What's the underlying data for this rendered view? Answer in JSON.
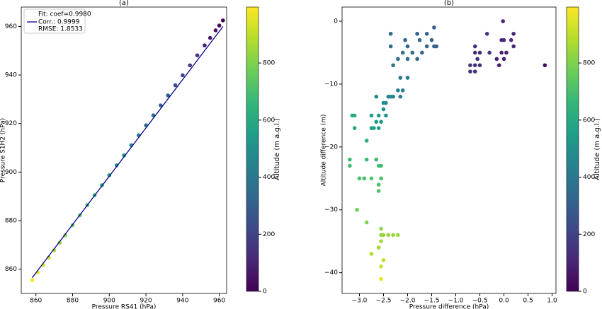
{
  "chart_data": [
    {
      "type": "scatter",
      "title": "(a)",
      "x_label": "Pressure RS41 (hPa)",
      "y_label": "Pressure S1H2 (hPa)",
      "xlim": [
        852,
        964
      ],
      "ylim": [
        850,
        968
      ],
      "xticks": [
        860,
        880,
        900,
        920,
        940,
        960
      ],
      "yticks": [
        860,
        880,
        900,
        920,
        940,
        960
      ],
      "series": [
        {
          "x": [
            858,
            861,
            864,
            867,
            870,
            873,
            876,
            880,
            884,
            888,
            892,
            896,
            900,
            904,
            908,
            912,
            916,
            920,
            924,
            928,
            932,
            936,
            940,
            944,
            948,
            952,
            955,
            958,
            960,
            962
          ],
          "y": [
            855.5,
            858.6,
            861.7,
            864.8,
            867.8,
            870.9,
            874.0,
            878.1,
            882.2,
            886.4,
            890.5,
            894.6,
            898.7,
            902.8,
            906.9,
            911.1,
            915.2,
            919.3,
            923.4,
            927.5,
            931.6,
            935.8,
            939.9,
            944.0,
            948.1,
            952.2,
            955.3,
            958.4,
            960.4,
            962.5
          ],
          "c": [
            988,
            960,
            931,
            902,
            874,
            845,
            817,
            779,
            741,
            703,
            665,
            627,
            589,
            551,
            513,
            475,
            437,
            399,
            361,
            323,
            285,
            247,
            209,
            171,
            133,
            95,
            67,
            38,
            19,
            0
          ]
        }
      ],
      "fit": {
        "name": "Fit: coef=0.9980",
        "color": "#00008b",
        "x": [
          858,
          962
        ],
        "y": [
          856.5,
          960
        ]
      },
      "annotations": [
        "Corr.: 0.9999",
        "RMSE: 1.8533"
      ],
      "colorbar": {
        "label": "Altitude (m a.g.l.)",
        "lim": [
          0,
          996
        ],
        "ticks": [
          0,
          200,
          400,
          600,
          800
        ],
        "colorscale": [
          "#440154",
          "#482878",
          "#3e4989",
          "#31688e",
          "#26828e",
          "#1f9e89",
          "#35b779",
          "#6ece58",
          "#b5de2b",
          "#fde725"
        ]
      }
    },
    {
      "type": "scatter",
      "title": "(b)",
      "x_label": "Pressure difference (hPa)",
      "y_label": "Altitude difference (m)",
      "xlim": [
        -3.36,
        1.08
      ],
      "ylim": [
        -43.3,
        2.25
      ],
      "xticks": [
        {
          "value": -3,
          "label": "−3.0"
        },
        {
          "value": -2.5,
          "label": "−2.5"
        },
        {
          "value": -2,
          "label": "−2.0"
        },
        {
          "value": -1.5,
          "label": "−1.5"
        },
        {
          "value": -1,
          "label": "−1.0"
        },
        {
          "value": -0.5,
          "label": "−0.5"
        },
        {
          "value": 0,
          "label": "0.0"
        },
        {
          "value": 0.5,
          "label": "0.5"
        },
        {
          "value": 1,
          "label": "1.0"
        }
      ],
      "yticks": [
        0,
        {
          "value": -10,
          "label": "−10"
        },
        {
          "value": -20,
          "label": "−20"
        },
        {
          "value": -30,
          "label": "−30"
        },
        {
          "value": -40,
          "label": "−40"
        }
      ],
      "series": [
        {
          "x": [
            -0.02,
            -0.05,
            0.0,
            0.15,
            0.2,
            0.2,
            -0.05,
            0.05,
            -0.15,
            0.0,
            -0.1,
            0.85,
            -0.35,
            -0.6,
            -0.6,
            -0.55,
            -0.5,
            -0.5,
            -0.6,
            -0.7,
            -0.7,
            -0.6,
            -0.3,
            -1.45,
            -1.6,
            -1.8,
            -2.35,
            -1.5,
            -1.75,
            -2.05,
            -2.35,
            -1.45,
            -1.4,
            -1.6,
            -2.0,
            -2.1,
            -1.9,
            -1.7,
            -2.2,
            -2.0,
            -1.8,
            -2.3,
            -2.15,
            -2.0,
            -2.1,
            -2.2,
            -2.15,
            -2.3,
            -2.4,
            -2.35,
            -2.65,
            -2.45,
            -2.5,
            -2.5,
            -2.6,
            -2.45,
            -2.75,
            -2.55,
            -2.65,
            -2.6,
            -2.7,
            -2.75,
            -3.1,
            -3.15,
            -3.1,
            -2.85,
            -3.2,
            -2.85,
            -2.65,
            -3.2,
            -2.6,
            -2.55,
            -2.55,
            -2.6,
            -2.9,
            -2.75,
            -2.6,
            -3.0,
            -3.05,
            -2.85,
            -2.55,
            -2.55,
            -2.5,
            -2.4,
            -2.2,
            -2.3,
            -2.55,
            -2.6,
            -2.75,
            -2.5,
            -2.55,
            -2.55
          ],
          "y": [
            0,
            -3,
            -3,
            -3,
            -2,
            -4,
            -5,
            -5,
            -6,
            -6,
            -7,
            -7,
            -2,
            -4,
            -5,
            -6,
            -5,
            -7,
            -7,
            -7,
            -8,
            -8,
            -5,
            -1,
            -2,
            -2,
            -2,
            -3,
            -3,
            -3,
            -4,
            -4,
            -4,
            -4,
            -4,
            -5,
            -5,
            -5,
            -6,
            -6,
            -6,
            -7,
            -9,
            -9,
            -11,
            -11,
            -12,
            -12,
            -12,
            -12,
            -12,
            -13,
            -13,
            -14,
            -15,
            -15,
            -15,
            -16,
            -16,
            -17,
            -17,
            -17,
            -15,
            -15,
            -17,
            -19,
            -22,
            -22,
            -22,
            -23,
            -23,
            -23,
            -25,
            -26,
            -25,
            -25,
            -27,
            -25,
            -30,
            -32,
            -33,
            -34,
            -34,
            -34,
            -34,
            -34,
            -35,
            -36,
            -37,
            -38,
            -39,
            -41
          ],
          "c": [
            100,
            100,
            100,
            120,
            100,
            100,
            80,
            80,
            80,
            80,
            80,
            30,
            150,
            130,
            130,
            130,
            120,
            130,
            150,
            150,
            150,
            150,
            150,
            300,
            300,
            300,
            330,
            310,
            320,
            330,
            340,
            310,
            310,
            320,
            330,
            350,
            340,
            330,
            360,
            350,
            340,
            380,
            400,
            400,
            420,
            420,
            430,
            440,
            450,
            450,
            470,
            480,
            480,
            500,
            520,
            500,
            540,
            540,
            540,
            560,
            560,
            560,
            600,
            600,
            600,
            620,
            680,
            680,
            680,
            690,
            690,
            690,
            700,
            710,
            700,
            720,
            720,
            700,
            780,
            800,
            830,
            840,
            840,
            840,
            840,
            840,
            850,
            860,
            880,
            900,
            920,
            960
          ]
        }
      ],
      "colorbar": {
        "label": "Altitude (m a.g.l.)",
        "lim": [
          0,
          996
        ],
        "ticks": [
          0,
          200,
          400,
          600,
          800
        ],
        "colorscale": [
          "#440154",
          "#482878",
          "#3e4989",
          "#31688e",
          "#26828e",
          "#1f9e89",
          "#35b779",
          "#6ece58",
          "#b5de2b",
          "#fde725"
        ]
      }
    }
  ]
}
